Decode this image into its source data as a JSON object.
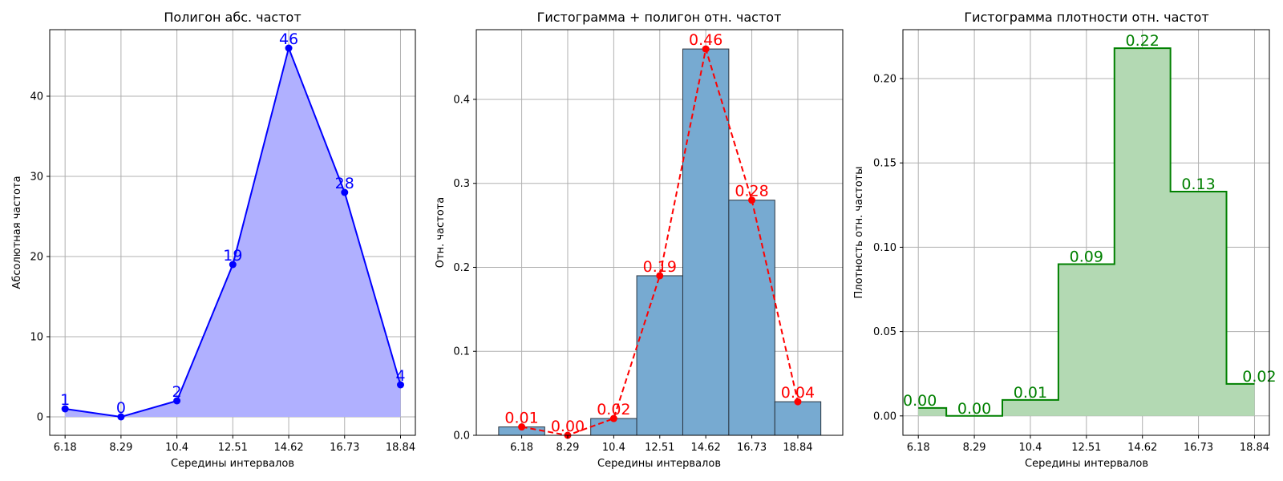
{
  "chart_data": [
    {
      "type": "area",
      "title": "Полигон абс. частот",
      "xlabel": "Середины интервалов",
      "ylabel": "Абсолютная частота",
      "x": [
        6.18,
        8.29,
        10.4,
        12.51,
        14.62,
        16.73,
        18.84
      ],
      "x_tick_labels": [
        "6.18",
        "8.29",
        "10.4",
        "12.51",
        "14.62",
        "16.73",
        "18.84"
      ],
      "values": [
        1,
        0,
        2,
        19,
        46,
        28,
        4
      ],
      "data_labels": [
        "1",
        "0",
        "2",
        "19",
        "46",
        "28",
        "4"
      ],
      "xlim": [
        5.6,
        19.4
      ],
      "ylim": [
        -2.3,
        48.3
      ],
      "y_ticks": [
        0,
        10,
        20,
        30,
        40
      ],
      "y_tick_labels": [
        "0",
        "10",
        "20",
        "30",
        "40"
      ],
      "grid": true,
      "colors": {
        "line": "#0000ff",
        "fill": "#b0b0ff",
        "label": "#0000ff"
      }
    },
    {
      "type": "bar",
      "title": "Гистограмма + полигон отн. частот",
      "xlabel": "Середины интервалов",
      "ylabel": "Отн. частота",
      "x": [
        6.18,
        8.29,
        10.4,
        12.51,
        14.62,
        16.73,
        18.84
      ],
      "x_tick_labels": [
        "6.18",
        "8.29",
        "10.4",
        "12.51",
        "14.62",
        "16.73",
        "18.84"
      ],
      "bar_edges": [
        5.125,
        7.235,
        9.345,
        11.455,
        13.565,
        15.675,
        17.785,
        19.895
      ],
      "values": [
        0.01,
        0.0,
        0.02,
        0.19,
        0.46,
        0.28,
        0.04
      ],
      "data_labels": [
        "0.01",
        "0.00",
        "0.02",
        "0.19",
        "0.46",
        "0.28",
        "0.04"
      ],
      "xlim": [
        4.1,
        20.9
      ],
      "ylim": [
        0,
        0.483
      ],
      "y_ticks": [
        0,
        0.1,
        0.2,
        0.3,
        0.4
      ],
      "y_tick_labels": [
        "0.0",
        "0.1",
        "0.2",
        "0.3",
        "0.4"
      ],
      "grid": true,
      "colors": {
        "bar": "#77aad1",
        "bar_edge": "#2a3540",
        "line": "#ff0000",
        "label": "#ff0000"
      }
    },
    {
      "type": "bar",
      "title": "Гистограмма плотности отн. частот",
      "xlabel": "Середины интервалов",
      "ylabel": "Плотность отн. частоты",
      "x": [
        6.18,
        8.29,
        10.4,
        12.51,
        14.62,
        16.73,
        18.84
      ],
      "x_tick_labels": [
        "6.18",
        "8.29",
        "10.4",
        "12.51",
        "14.62",
        "16.73",
        "18.84"
      ],
      "bar_edges": [
        6.18,
        7.235,
        9.345,
        11.455,
        13.565,
        15.675,
        17.785,
        18.84
      ],
      "values": [
        0.0047,
        0.0,
        0.0095,
        0.09,
        0.218,
        0.133,
        0.019
      ],
      "data_labels": [
        "0.00",
        "0.00",
        "0.01",
        "0.09",
        "0.22",
        "0.13",
        "0.02"
      ],
      "xlim": [
        5.6,
        19.4
      ],
      "ylim": [
        -0.0115,
        0.229
      ],
      "y_ticks": [
        0,
        0.05,
        0.1,
        0.15,
        0.2
      ],
      "y_tick_labels": [
        "0.00",
        "0.05",
        "0.10",
        "0.15",
        "0.20"
      ],
      "grid": true,
      "colors": {
        "fill": "#b3d9b3",
        "line": "#008000",
        "label": "#008000"
      }
    }
  ]
}
